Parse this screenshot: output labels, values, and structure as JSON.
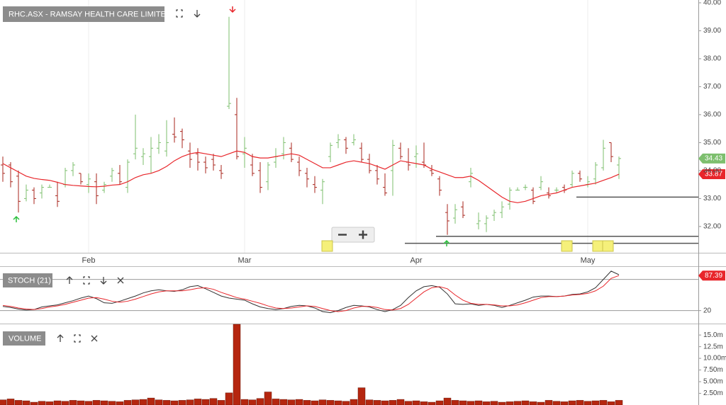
{
  "chart_data": [
    {
      "type": "ohlc",
      "title": "RHC.ASX - RAMSAY HEALTH CARE LIMITED",
      "categories": [
        null,
        null,
        null,
        null,
        null,
        null,
        null,
        null,
        null,
        null,
        null,
        "Feb",
        null,
        null,
        null,
        null,
        null,
        null,
        null,
        null,
        null,
        null,
        null,
        null,
        null,
        null,
        null,
        null,
        null,
        null,
        null,
        "Mar",
        null,
        null,
        null,
        null,
        null,
        null,
        null,
        null,
        null,
        null,
        null,
        null,
        null,
        null,
        null,
        null,
        null,
        null,
        null,
        null,
        null,
        "Apr",
        null,
        null,
        null,
        null,
        null,
        null,
        null,
        null,
        null,
        null,
        null,
        null,
        null,
        null,
        null,
        null,
        null,
        null,
        null,
        null,
        null,
        "May",
        null,
        null,
        null,
        null
      ],
      "open": [
        34.2,
        34.2,
        33.8,
        33.0,
        33.3,
        33.2,
        33.4,
        33.1,
        33.5,
        34.0,
        33.9,
        33.5,
        33.6,
        33.3,
        33.8,
        33.9,
        33.4,
        34.6,
        34.5,
        34.5,
        34.8,
        34.7,
        35.3,
        35.4,
        34.7,
        34.6,
        34.3,
        34.4,
        34.0,
        36.3,
        36.0,
        34.6,
        34.2,
        34.0,
        33.6,
        34.3,
        34.6,
        34.8,
        34.3,
        33.9,
        33.5,
        33.3,
        34.5,
        35.0,
        35.1,
        35.0,
        34.8,
        34.4,
        34.0,
        33.4,
        34.0,
        34.8,
        34.3,
        34.5,
        34.3,
        34.0,
        33.7,
        32.5,
        32.3,
        32.7,
        33.6,
        32.1,
        32.1,
        32.4,
        32.5,
        32.8,
        33.3,
        33.4,
        33.3,
        33.4,
        33.2,
        33.3,
        33.4,
        33.5,
        33.9,
        33.5,
        33.7,
        34.1,
        35.0,
        34.2
      ],
      "high": [
        34.5,
        34.3,
        34.0,
        33.5,
        33.4,
        33.5,
        33.5,
        33.6,
        34.1,
        34.3,
        33.9,
        33.9,
        33.9,
        33.6,
        34.1,
        34.2,
        34.4,
        36.0,
        34.8,
        35.2,
        35.3,
        35.8,
        35.9,
        35.5,
        35.0,
        34.8,
        34.5,
        34.6,
        34.2,
        39.5,
        36.6,
        35.2,
        34.6,
        34.3,
        34.3,
        34.8,
        35.2,
        35.0,
        34.5,
        34.1,
        33.8,
        33.7,
        35.0,
        35.3,
        35.2,
        35.3,
        35.0,
        34.6,
        34.2,
        33.9,
        35.1,
        35.0,
        34.8,
        34.9,
        35.0,
        34.2,
        33.8,
        32.8,
        32.8,
        32.9,
        34.1,
        32.5,
        32.4,
        32.6,
        32.9,
        33.4,
        33.4,
        33.5,
        33.4,
        33.8,
        33.4,
        33.4,
        33.5,
        34.0,
        34.0,
        33.8,
        34.3,
        35.1,
        35.0,
        34.5
      ],
      "low": [
        33.6,
        33.4,
        32.5,
        32.9,
        32.8,
        33.0,
        33.4,
        32.7,
        33.4,
        33.8,
        33.5,
        33.2,
        32.8,
        33.2,
        33.6,
        33.5,
        33.2,
        34.4,
        34.2,
        33.9,
        34.6,
        34.5,
        35.0,
        34.8,
        34.1,
        34.0,
        33.9,
        34.0,
        33.7,
        36.2,
        34.4,
        34.1,
        33.8,
        33.2,
        33.3,
        34.1,
        34.4,
        34.3,
        33.8,
        33.4,
        33.2,
        32.8,
        34.3,
        34.8,
        34.6,
        34.9,
        34.3,
        33.9,
        33.5,
        33.1,
        33.1,
        34.4,
        34.0,
        34.1,
        34.1,
        33.8,
        33.1,
        31.7,
        32.1,
        32.3,
        33.4,
        31.9,
        31.8,
        32.2,
        32.3,
        32.6,
        33.3,
        33.3,
        32.8,
        33.3,
        33.0,
        33.2,
        33.2,
        33.4,
        33.6,
        33.4,
        33.5,
        34.0,
        34.3,
        33.7
      ],
      "close": [
        33.9,
        33.6,
        32.9,
        33.3,
        33.0,
        33.4,
        33.4,
        32.9,
        34.0,
        34.2,
        33.6,
        33.7,
        33.1,
        33.5,
        34.0,
        33.6,
        34.3,
        34.8,
        34.6,
        34.8,
        35.0,
        35.0,
        35.2,
        35.1,
        34.4,
        34.3,
        34.1,
        34.2,
        33.9,
        36.4,
        34.5,
        34.8,
        33.9,
        33.4,
        34.2,
        34.5,
        35.0,
        34.4,
        34.0,
        33.7,
        33.4,
        33.6,
        34.9,
        35.1,
        34.8,
        35.1,
        34.4,
        34.0,
        33.7,
        33.2,
        34.9,
        34.5,
        34.2,
        34.6,
        34.2,
        33.9,
        33.3,
        32.2,
        32.6,
        32.4,
        33.9,
        32.2,
        32.3,
        32.5,
        32.7,
        33.3,
        33.3,
        33.4,
        32.9,
        33.6,
        33.1,
        33.3,
        33.3,
        33.9,
        33.7,
        33.6,
        34.2,
        34.8,
        34.5,
        34.43
      ],
      "up_color": "#7dbf6e",
      "down_color": "#a8261c",
      "overlay": {
        "color": "#e8262b",
        "values": [
          34.25,
          34.1,
          33.95,
          33.8,
          33.72,
          33.68,
          33.65,
          33.58,
          33.5,
          33.47,
          33.45,
          33.43,
          33.42,
          33.44,
          33.48,
          33.5,
          33.6,
          33.75,
          33.85,
          33.9,
          34.0,
          34.15,
          34.35,
          34.5,
          34.6,
          34.65,
          34.6,
          34.55,
          34.5,
          34.6,
          34.7,
          34.65,
          34.5,
          34.45,
          34.45,
          34.5,
          34.55,
          34.6,
          34.55,
          34.4,
          34.25,
          34.1,
          34.1,
          34.2,
          34.3,
          34.35,
          34.3,
          34.25,
          34.15,
          34.05,
          34.2,
          34.35,
          34.3,
          34.25,
          34.2,
          34.05,
          33.95,
          33.85,
          33.75,
          33.75,
          33.8,
          33.65,
          33.45,
          33.25,
          33.05,
          32.9,
          32.85,
          32.9,
          33.0,
          33.1,
          33.15,
          33.2,
          33.3,
          33.4,
          33.45,
          33.5,
          33.55,
          33.65,
          33.75,
          33.87
        ]
      },
      "levels": [
        {
          "value": 33.05,
          "from": 74
        },
        {
          "value": 31.65,
          "from": 56
        },
        {
          "value": 31.4,
          "from": 52
        }
      ],
      "ylim": [
        31.06,
        40.1
      ],
      "yticks": [
        {
          "value": 32,
          "label": "32.00"
        },
        {
          "value": 33,
          "label": "33.00"
        },
        {
          "value": 34,
          "label": "34.00"
        },
        {
          "value": 35,
          "label": "35.00"
        },
        {
          "value": 36,
          "label": "36.00"
        },
        {
          "value": 37,
          "label": "37.00"
        },
        {
          "value": 38,
          "label": "38.00"
        },
        {
          "value": 39,
          "label": "39.00"
        },
        {
          "value": 40,
          "label": "40.00"
        }
      ]
    },
    {
      "type": "line",
      "title": "STOCH (21)",
      "series": [
        {
          "color": "#333333",
          "values": [
            28,
            26,
            23,
            21,
            22,
            27,
            29,
            31,
            35,
            39,
            44,
            48,
            43,
            35,
            34,
            38,
            43,
            48,
            54,
            58,
            60,
            58,
            57,
            60,
            66,
            68,
            62,
            55,
            48,
            44,
            42,
            40,
            33,
            27,
            24,
            22,
            24,
            28,
            30,
            29,
            25,
            18,
            16,
            20,
            26,
            30,
            29,
            27,
            22,
            18,
            22,
            30,
            45,
            58,
            66,
            68,
            65,
            52,
            33,
            32,
            33,
            30,
            32,
            30,
            26,
            30,
            35,
            40,
            46,
            48,
            48,
            47,
            48,
            51,
            52,
            56,
            64,
            80,
            96,
            89
          ]
        },
        {
          "color": "#e8262b",
          "values": [
            30,
            28,
            25,
            23,
            22,
            24,
            27,
            29,
            32,
            36,
            40,
            44,
            45,
            42,
            38,
            36,
            38,
            42,
            47,
            52,
            56,
            58,
            58,
            58,
            60,
            63,
            64,
            61,
            55,
            50,
            45,
            42,
            38,
            34,
            29,
            25,
            24,
            25,
            27,
            29,
            28,
            24,
            20,
            18,
            20,
            25,
            28,
            28,
            26,
            22,
            21,
            24,
            32,
            44,
            56,
            64,
            66,
            62,
            50,
            40,
            34,
            32,
            32,
            31,
            29,
            29,
            31,
            35,
            40,
            45,
            47,
            47,
            48,
            50,
            51,
            53,
            58,
            67,
            82,
            87.39
          ]
        }
      ],
      "levels": [
        20,
        80
      ],
      "ylim": [
        -5,
        104
      ],
      "yticks": [
        20
      ]
    },
    {
      "type": "bar",
      "title": "VOLUME",
      "color": "#b5260f",
      "values": [
        1100000,
        1300000,
        1000000,
        900000,
        600000,
        800000,
        700000,
        900000,
        800000,
        1000000,
        900000,
        800000,
        1000000,
        900000,
        800000,
        700000,
        1000000,
        1100000,
        1200000,
        1500000,
        1100000,
        1000000,
        900000,
        1000000,
        1100000,
        1300000,
        1200000,
        1400000,
        1000000,
        2600000,
        17300000,
        1200000,
        1100000,
        1400000,
        2800000,
        1300000,
        1200000,
        1100000,
        1200000,
        1000000,
        900000,
        1100000,
        1000000,
        900000,
        800000,
        1200000,
        3700000,
        1100000,
        1000000,
        900000,
        1000000,
        1200000,
        800000,
        900000,
        700000,
        600000,
        900000,
        1500000,
        1000000,
        900000,
        800000,
        900000,
        700000,
        800000,
        600000,
        700000,
        800000,
        900000,
        700000,
        600000,
        1000000,
        800000,
        700000,
        900000,
        1000000,
        800000,
        900000,
        1000000,
        700000,
        1000000
      ],
      "ylim": [
        0,
        17300000
      ],
      "yticks": [
        {
          "value": 2500000,
          "label": "2.50m"
        },
        {
          "value": 5000000,
          "label": "5.00m"
        },
        {
          "value": 7500000,
          "label": "7.50m"
        },
        {
          "value": 10000000,
          "label": "10.00m"
        },
        {
          "value": 12500000,
          "label": "12.5m"
        },
        {
          "value": 15000000,
          "label": "15.0m"
        }
      ]
    }
  ]
}
